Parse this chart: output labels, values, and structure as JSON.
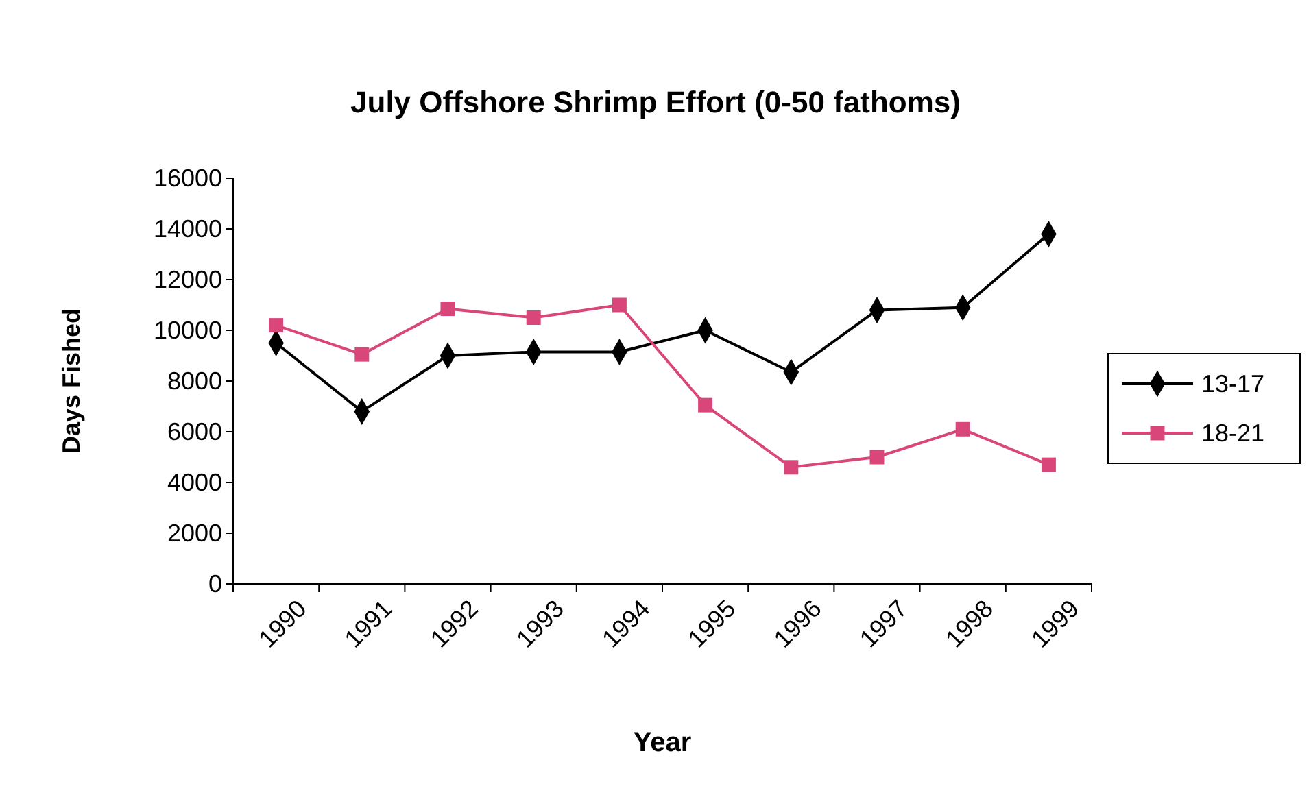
{
  "chart_data": {
    "type": "line",
    "title": "July Offshore Shrimp Effort (0-50 fathoms)",
    "xlabel": "Year",
    "ylabel": "Days Fished",
    "categories": [
      "1990",
      "1991",
      "1992",
      "1993",
      "1994",
      "1995",
      "1996",
      "1997",
      "1998",
      "1999"
    ],
    "series": [
      {
        "name": "13-17",
        "color": "#000000",
        "marker": "diamond",
        "values": [
          9500,
          6800,
          9000,
          9150,
          9150,
          10000,
          8350,
          10800,
          10900,
          13800
        ]
      },
      {
        "name": "18-21",
        "color": "#d9467a",
        "marker": "square",
        "values": [
          10200,
          9050,
          10850,
          10500,
          11000,
          7050,
          4600,
          5000,
          6100,
          4700
        ]
      }
    ],
    "ylim": [
      0,
      16000
    ],
    "yticks": [
      0,
      2000,
      4000,
      6000,
      8000,
      10000,
      12000,
      14000,
      16000
    ],
    "grid": false,
    "legend": "right",
    "line_style": "solid"
  }
}
